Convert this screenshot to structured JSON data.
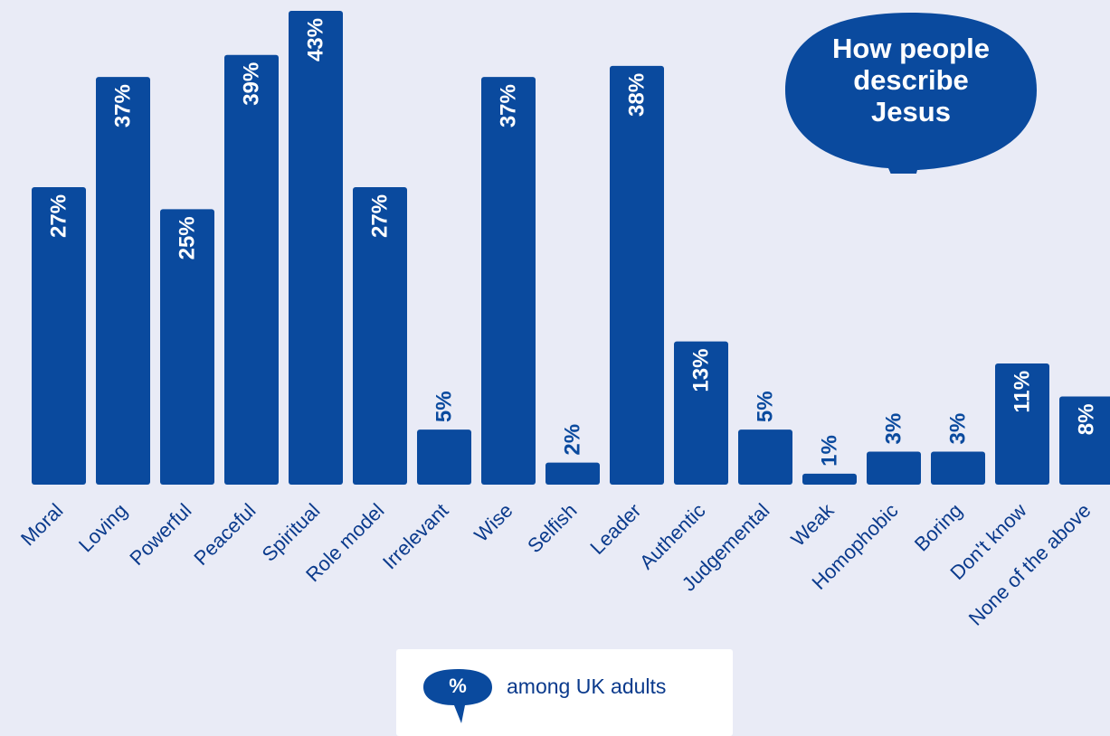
{
  "chart_data": {
    "type": "bar",
    "title": "How people\ndescribe\nJesus",
    "categories": [
      "Moral",
      "Loving",
      "Powerful",
      "Peaceful",
      "Spiritual",
      "Role model",
      "Irrelevant",
      "Wise",
      "Selfish",
      "Leader",
      "Authentic",
      "Judgemental",
      "Weak",
      "Homophobic",
      "Boring",
      "Don't know",
      "None of the above"
    ],
    "values": [
      27,
      37,
      25,
      39,
      43,
      27,
      5,
      37,
      2,
      38,
      13,
      5,
      1,
      3,
      3,
      11,
      8
    ],
    "value_labels": [
      "27%",
      "37%",
      "25%",
      "39%",
      "43%",
      "27%",
      "5%",
      "37%",
      "2%",
      "38%",
      "13%",
      "5%",
      "1%",
      "3%",
      "3%",
      "11%",
      "8%"
    ],
    "ylim": [
      0,
      43
    ],
    "unit": "%",
    "bar_color": "#0a4a9e",
    "background_color": "#e9ebf6",
    "grid": false
  },
  "legend": {
    "symbol": "%",
    "text": "among UK adults",
    "icon": "speech-bubble-icon"
  }
}
